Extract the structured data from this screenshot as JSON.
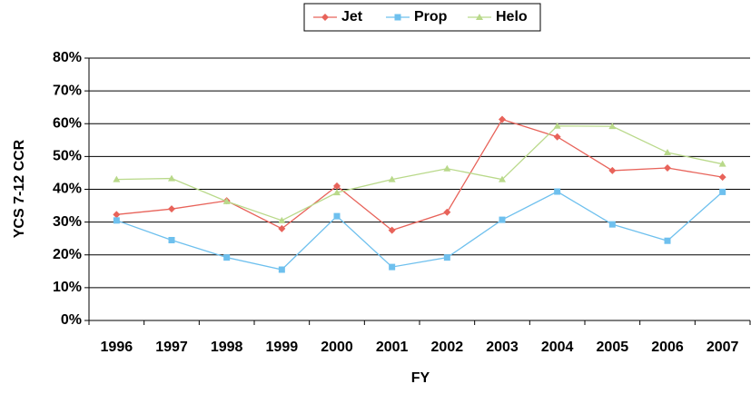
{
  "chart_data": {
    "type": "line",
    "x_label": "FY",
    "y_label": "YCS 7-12 CCR",
    "categories": [
      "1996",
      "1997",
      "1998",
      "1999",
      "2000",
      "2001",
      "2002",
      "2003",
      "2004",
      "2005",
      "2006",
      "2007"
    ],
    "series": [
      {
        "name": "Jet",
        "color": "#e8635a",
        "marker": "diamond",
        "values": [
          32.3,
          34,
          36.5,
          28,
          41,
          27.5,
          33,
          61.3,
          56,
          45.7,
          46.5,
          43.7
        ]
      },
      {
        "name": "Prop",
        "color": "#6ec0ee",
        "marker": "square",
        "values": [
          30.5,
          24.5,
          19.2,
          15.5,
          31.8,
          16.3,
          19.2,
          30.7,
          39.3,
          29.3,
          24.3,
          39.2
        ]
      },
      {
        "name": "Helo",
        "color": "#b9d98a",
        "marker": "triangle",
        "values": [
          43,
          43.3,
          36.3,
          30.5,
          39,
          43,
          46.3,
          43,
          59.3,
          59.2,
          51.2,
          47.7
        ]
      }
    ],
    "ylim": [
      0,
      80
    ],
    "yticks": [
      {
        "value": 0,
        "label": "0%"
      },
      {
        "value": 10,
        "label": "10%"
      },
      {
        "value": 20,
        "label": "20%"
      },
      {
        "value": 30,
        "label": "30%"
      },
      {
        "value": 40,
        "label": "40%"
      },
      {
        "value": 50,
        "label": "50%"
      },
      {
        "value": 60,
        "label": "60%"
      },
      {
        "value": 70,
        "label": "70%"
      },
      {
        "value": 80,
        "label": "80%"
      }
    ],
    "grid": true,
    "legend": "top"
  }
}
